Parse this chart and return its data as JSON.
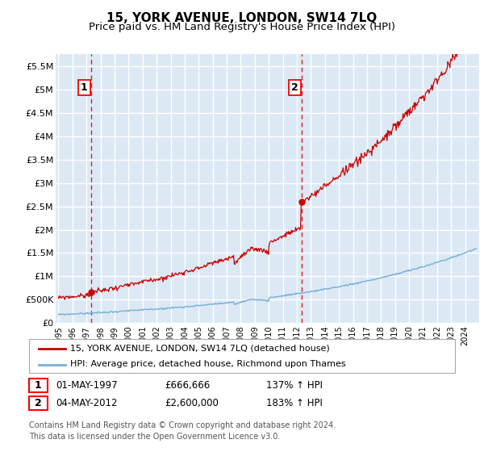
{
  "title": "15, YORK AVENUE, LONDON, SW14 7LQ",
  "subtitle": "Price paid vs. HM Land Registry's House Price Index (HPI)",
  "title_fontsize": 11,
  "subtitle_fontsize": 9.5,
  "bg_color": "#dce9f5",
  "grid_color": "#ffffff",
  "hpi_color": "#7bafd4",
  "price_color": "#cc0000",
  "point1_date_num": 1997.33,
  "point2_date_num": 2012.33,
  "point1_price": 666666,
  "point2_price": 2600000,
  "legend_label_price": "15, YORK AVENUE, LONDON, SW14 7LQ (detached house)",
  "legend_label_hpi": "HPI: Average price, detached house, Richmond upon Thames",
  "table_row1": [
    "1",
    "01-MAY-1997",
    "£666,666",
    "137% ↑ HPI"
  ],
  "table_row2": [
    "2",
    "04-MAY-2012",
    "£2,600,000",
    "183% ↑ HPI"
  ],
  "footer_text": "Contains HM Land Registry data © Crown copyright and database right 2024.\nThis data is licensed under the Open Government Licence v3.0.",
  "xmin": 1994.8,
  "xmax": 2025.0,
  "ymin": 0,
  "ymax": 5750000,
  "yticks": [
    0,
    500000,
    1000000,
    1500000,
    2000000,
    2500000,
    3000000,
    3500000,
    4000000,
    4500000,
    5000000,
    5500000
  ],
  "ylabels": [
    "£0",
    "£500K",
    "£1M",
    "£1.5M",
    "£2M",
    "£2.5M",
    "£3M",
    "£3.5M",
    "£4M",
    "£4.5M",
    "£5M",
    "£5.5M"
  ]
}
